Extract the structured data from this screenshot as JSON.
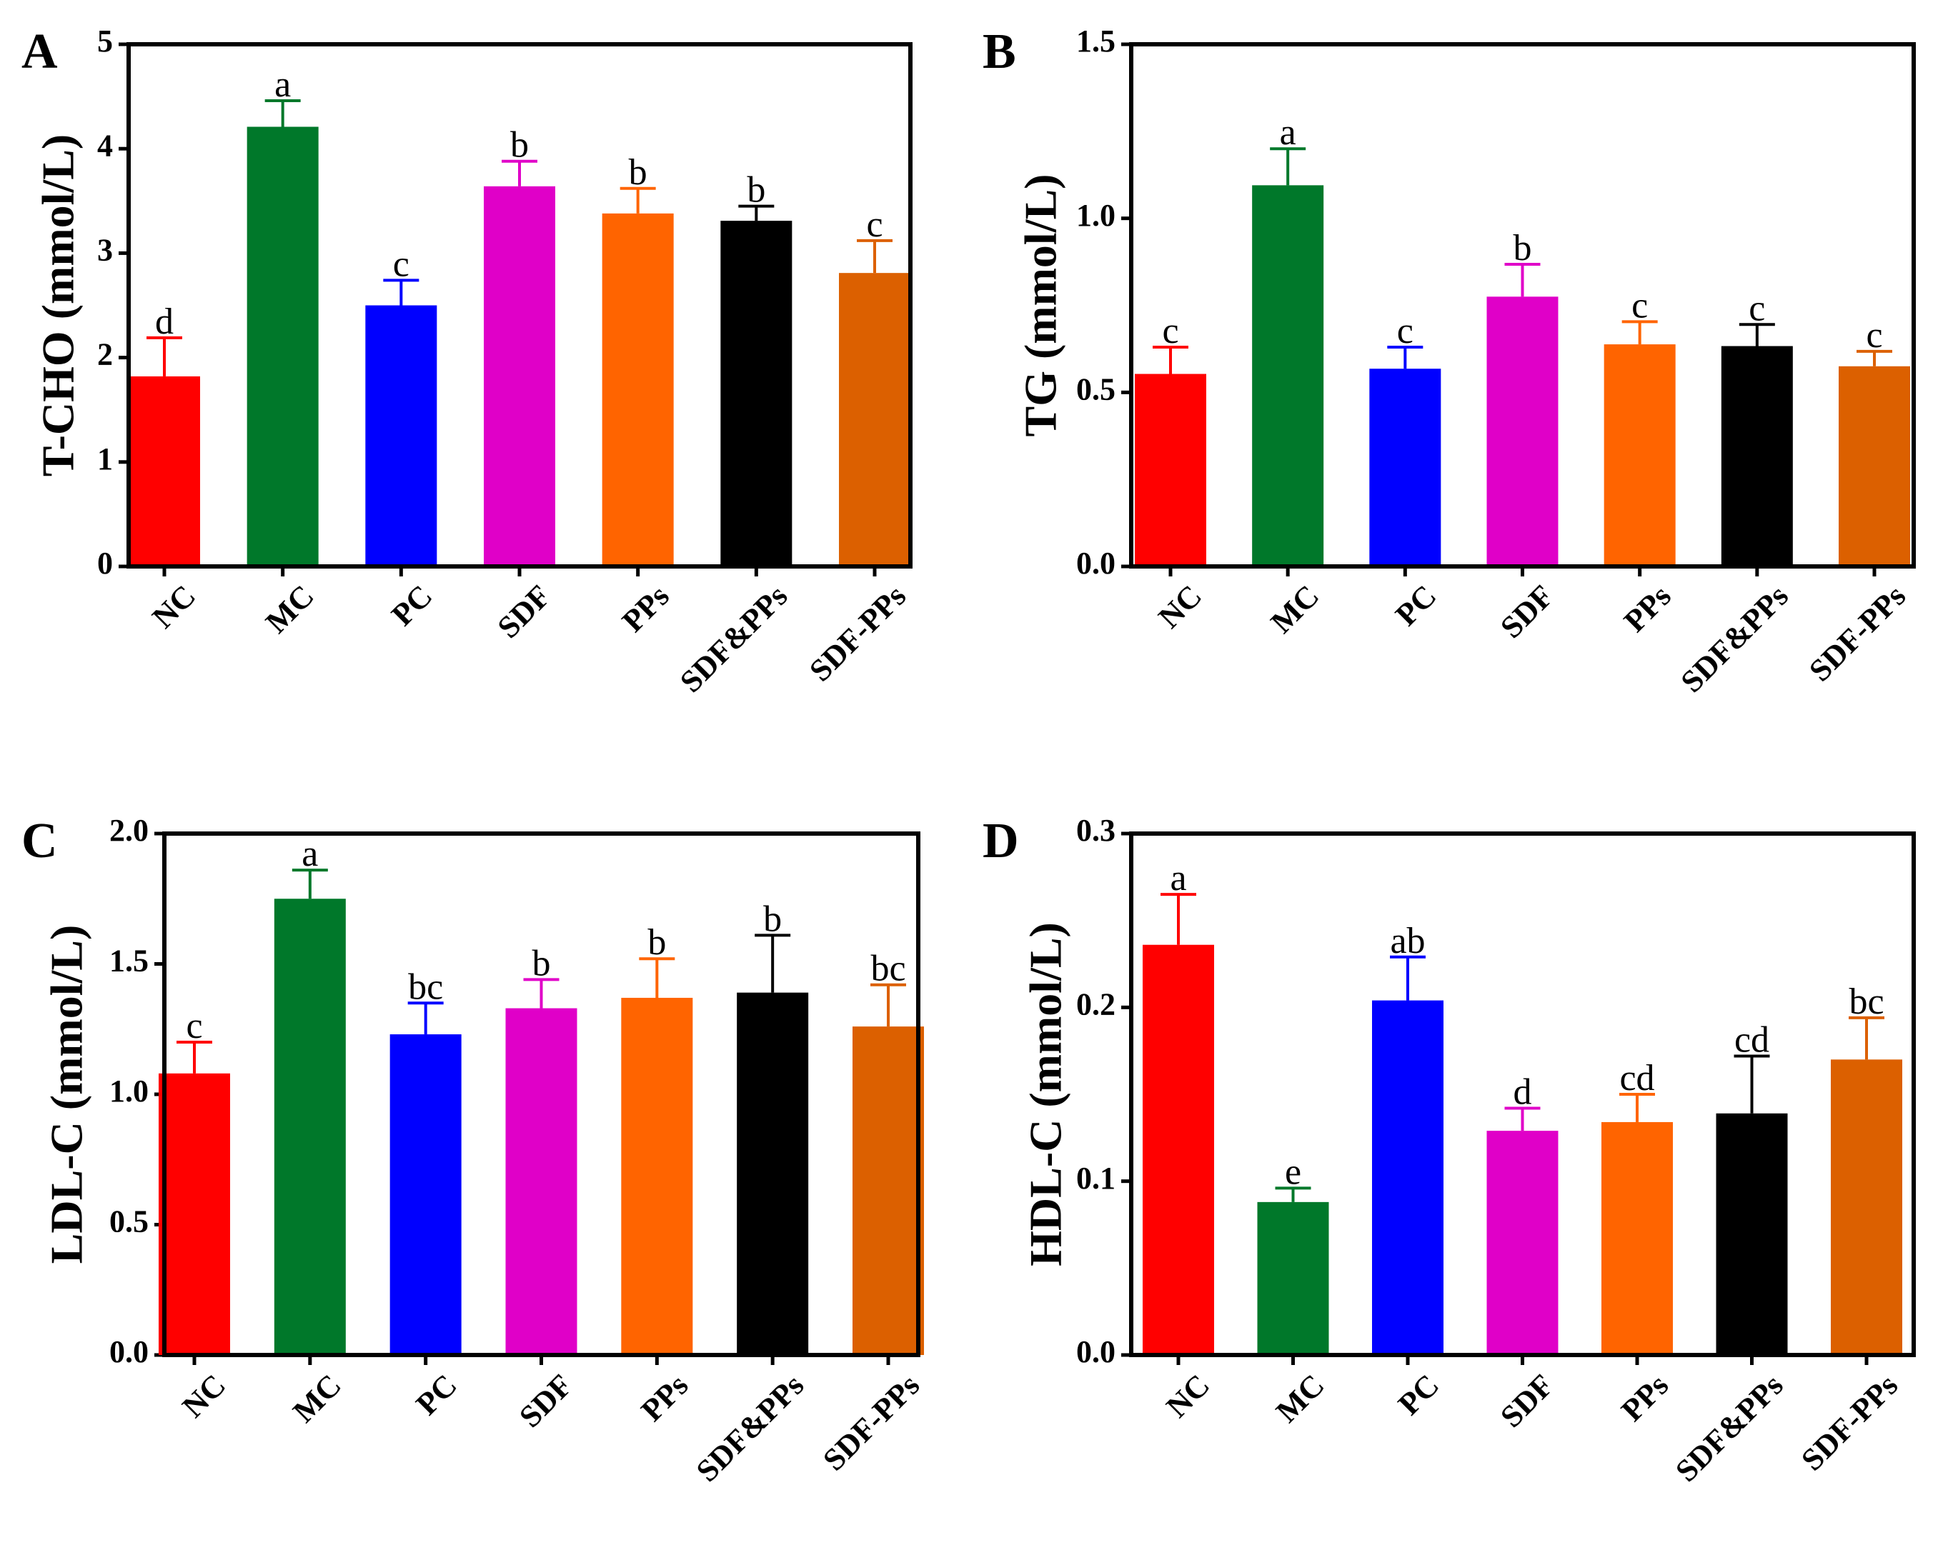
{
  "chart_data": [
    {
      "panel": "A",
      "type": "bar",
      "ylabel": "T-CHO (mmol/L)",
      "ylim": [
        0,
        5
      ],
      "yticks": [
        "0",
        "1",
        "2",
        "3",
        "4",
        "5"
      ],
      "categories": [
        "NC",
        "MC",
        "PC",
        "SDF",
        "PPs",
        "SDF&PPs",
        "SDF-PPs"
      ],
      "values": [
        1.82,
        4.21,
        2.5,
        3.64,
        3.38,
        3.31,
        2.81
      ],
      "errors": [
        0.37,
        0.25,
        0.24,
        0.24,
        0.24,
        0.14,
        0.31
      ],
      "labels": [
        "d",
        "a",
        "c",
        "b",
        "b",
        "b",
        "c"
      ]
    },
    {
      "panel": "B",
      "type": "bar",
      "ylabel": "TG (mmol/L)",
      "ylim": [
        0,
        1.5
      ],
      "yticks": [
        "0.0",
        "0.5",
        "1.0",
        "1.5"
      ],
      "categories": [
        "NC",
        "MC",
        "PC",
        "SDF",
        "PPs",
        "SDF&PPs",
        "SDF-PPs"
      ],
      "values": [
        0.553,
        1.095,
        0.568,
        0.775,
        0.638,
        0.633,
        0.575
      ],
      "errors": [
        0.077,
        0.105,
        0.062,
        0.093,
        0.065,
        0.062,
        0.043
      ],
      "labels": [
        "c",
        "a",
        "c",
        "b",
        "c",
        "c",
        "c"
      ]
    },
    {
      "panel": "C",
      "type": "bar",
      "ylabel": "LDL-C (mmol/L)",
      "ylim": [
        0,
        2.0
      ],
      "yticks": [
        "0.0",
        "0.5",
        "1.0",
        "1.5",
        "2.0"
      ],
      "categories": [
        "NC",
        "MC",
        "PC",
        "SDF",
        "PPs",
        "SDF&PPs",
        "SDF-PPs"
      ],
      "values": [
        1.08,
        1.75,
        1.23,
        1.33,
        1.37,
        1.39,
        1.26
      ],
      "errors": [
        0.12,
        0.11,
        0.12,
        0.11,
        0.15,
        0.22,
        0.16
      ],
      "labels": [
        "c",
        "a",
        "bc",
        "b",
        "b",
        "b",
        "bc"
      ]
    },
    {
      "panel": "D",
      "type": "bar",
      "ylabel": "HDL-C (mmol/L)",
      "ylim": [
        0,
        0.3
      ],
      "yticks": [
        "0.0",
        "0.1",
        "0.2",
        "0.3"
      ],
      "categories": [
        "NC",
        "MC",
        "PC",
        "SDF",
        "PPs",
        "SDF&PPs",
        "SDF-PPs"
      ],
      "values": [
        0.236,
        0.088,
        0.204,
        0.129,
        0.134,
        0.139,
        0.17
      ],
      "errors": [
        0.029,
        0.008,
        0.025,
        0.013,
        0.016,
        0.033,
        0.024
      ],
      "labels": [
        "a",
        "e",
        "ab",
        "d",
        "cd",
        "cd",
        "bc"
      ]
    }
  ],
  "colors": [
    "#ff0000",
    "#00782a",
    "#0000ff",
    "#e000c8",
    "#ff6400",
    "#000000",
    "#dc6000"
  ]
}
